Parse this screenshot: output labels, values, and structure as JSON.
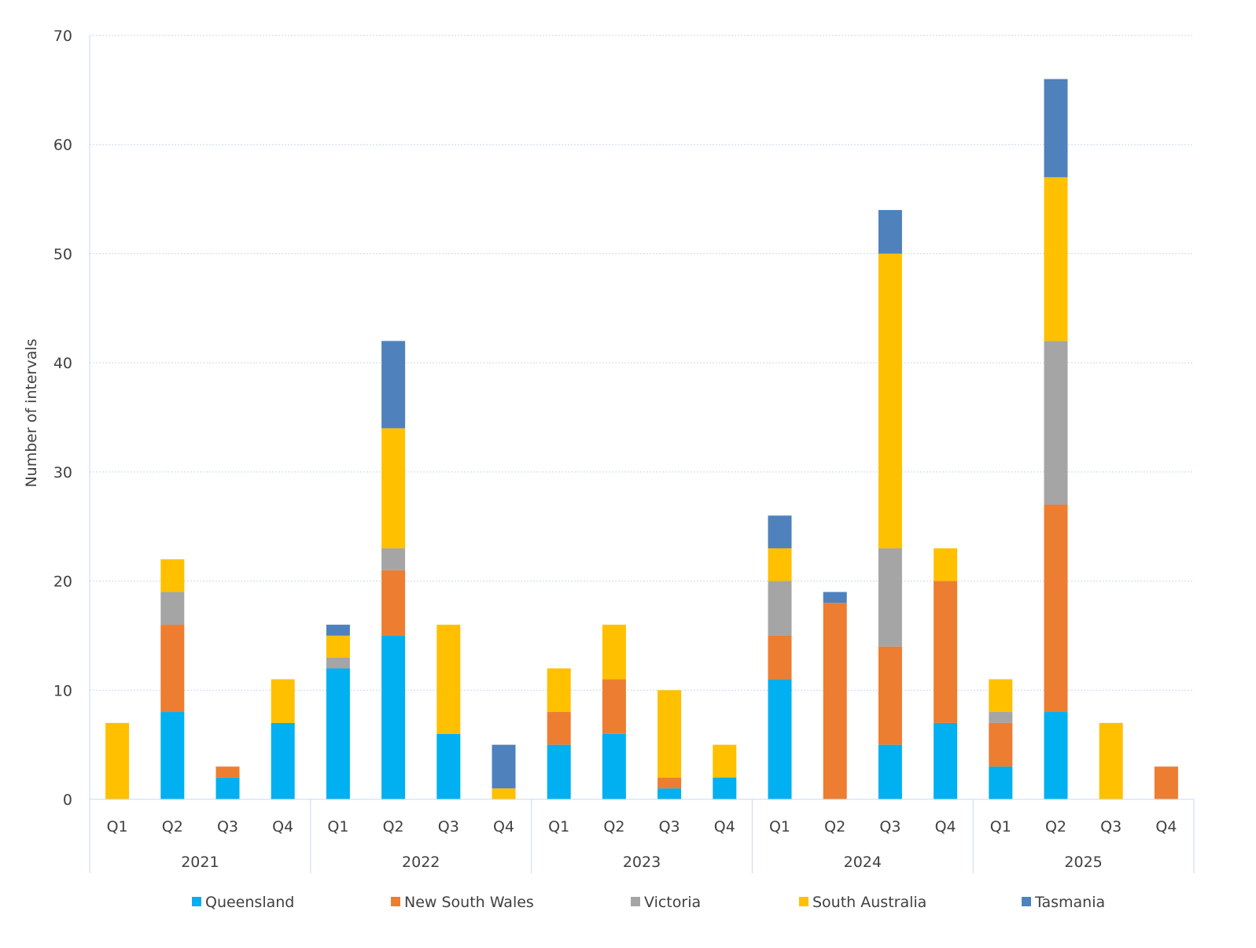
{
  "chart_data": {
    "type": "bar",
    "stacked": true,
    "title": "",
    "xlabel": "",
    "ylabel": "Number of intervals",
    "ylim": [
      0,
      70
    ],
    "yticks": [
      0,
      10,
      20,
      30,
      40,
      50,
      60,
      70
    ],
    "grid": true,
    "legend_position": "bottom",
    "years": [
      "2021",
      "2022",
      "2023",
      "2024",
      "2025"
    ],
    "quarters": [
      "Q1",
      "Q2",
      "Q3",
      "Q4"
    ],
    "categories": [
      "2021 Q1",
      "2021 Q2",
      "2021 Q3",
      "2021 Q4",
      "2022 Q1",
      "2022 Q2",
      "2022 Q3",
      "2022 Q4",
      "2023 Q1",
      "2023 Q2",
      "2023 Q3",
      "2023 Q4",
      "2024 Q1",
      "2024 Q2",
      "2024 Q3",
      "2024 Q4",
      "2025 Q1",
      "2025 Q2",
      "2025 Q3",
      "2025 Q4"
    ],
    "series": [
      {
        "name": "Queensland",
        "color": "#00B0F0",
        "values": [
          0,
          8,
          2,
          7,
          12,
          15,
          6,
          0,
          5,
          6,
          1,
          2,
          11,
          0,
          5,
          7,
          3,
          8,
          0,
          0
        ]
      },
      {
        "name": "New South Wales",
        "color": "#ED7D31",
        "values": [
          0,
          8,
          1,
          0,
          0,
          6,
          0,
          0,
          3,
          5,
          1,
          0,
          4,
          18,
          9,
          13,
          4,
          19,
          0,
          3
        ]
      },
      {
        "name": "Victoria",
        "color": "#A5A5A5",
        "values": [
          0,
          3,
          0,
          0,
          1,
          2,
          0,
          0,
          0,
          0,
          0,
          0,
          5,
          0,
          9,
          0,
          1,
          15,
          0,
          0
        ]
      },
      {
        "name": "South Australia",
        "color": "#FFC000",
        "values": [
          7,
          3,
          0,
          4,
          2,
          11,
          10,
          1,
          4,
          5,
          8,
          3,
          3,
          0,
          27,
          3,
          3,
          15,
          7,
          0
        ]
      },
      {
        "name": "Tasmania",
        "color": "#4F81BD",
        "values": [
          0,
          0,
          0,
          0,
          1,
          8,
          0,
          4,
          0,
          0,
          0,
          0,
          3,
          1,
          4,
          0,
          0,
          9,
          0,
          0
        ]
      }
    ]
  }
}
